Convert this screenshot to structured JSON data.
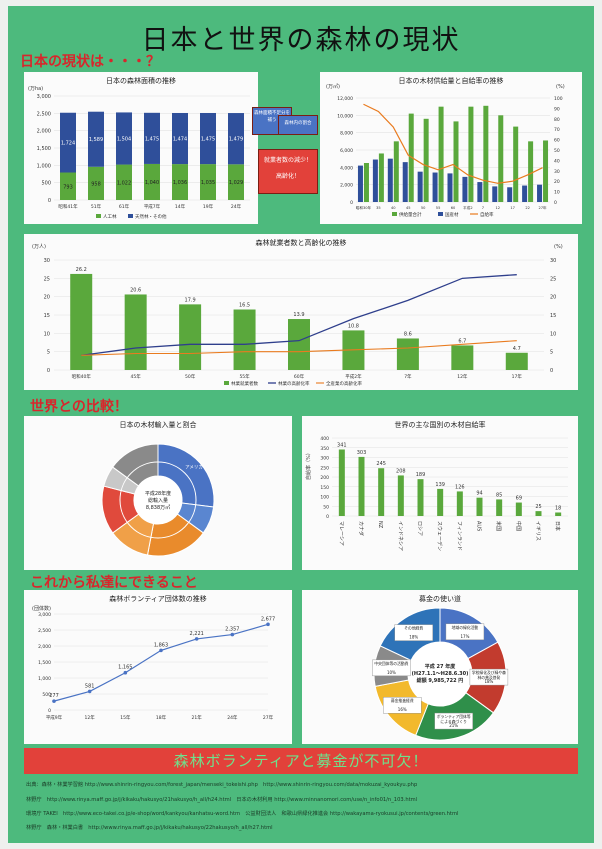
{
  "title": "日本と世界の森林の現状",
  "sections": {
    "japan": "日本の現状は・・・？",
    "world": "世界との比較！",
    "action": "これから私達にできること"
  },
  "arrows": {
    "left": "森林面積不足分を補う",
    "right": "森林内の割合"
  },
  "callout": {
    "line1": "就業者数の減少！",
    "line2": "高齢化！"
  },
  "banner": "森林ボランティアと募金が不可欠！",
  "refs": [
    "出典：森林・林業学習館 http://www.shinrin-ringyou.com/forest_japan/menseki_tokeishi.php　http://www.shinrin-ringyou.com/data/mokuzai_kyoukyu.php",
    "林野庁　http://www.rinya.maff.go.jp/j/kikaku/hakusyo/21hakusyo/h_all/h24.html　日本の木材利用 http://www.minnanomori.com/use/n_info01/n_103.html",
    "環境庁 TAKEI　http://www.eco-takei.co.jp/e-shop/word/kankyou/kanhatsu-word.htm　公益財団法人　和歌山県緑化推進会 http://wakayama-ryokusui.jp/contents/green.html",
    "林野庁　森林・林業白書　http://www.rinya.maff.go.jp/j/kikaku/hakusyo/22hakusyo/h_all/h27.html"
  ],
  "chart_data": [
    {
      "type": "bar",
      "title": "日本の森林面積の推移",
      "unit": "(万ha)",
      "categories": [
        "昭和41年",
        "51年",
        "61年",
        "平成7年",
        "14年",
        "19年",
        "24年"
      ],
      "series": [
        {
          "name": "人工林",
          "values": [
            793,
            958,
            1022,
            1040,
            1036,
            1035,
            1029
          ]
        },
        {
          "name": "天然林・その他",
          "values": [
            1724,
            1589,
            1504,
            1475,
            1474,
            1475,
            1479
          ]
        }
      ],
      "ylim": [
        0,
        3000
      ],
      "yticks": [
        "0",
        "500",
        "1,000",
        "1,500",
        "2,000",
        "2,500",
        "3,000"
      ],
      "value_labels_bottom": [
        "793",
        "958",
        "1,022",
        "1,040",
        "1,036",
        "1,035",
        "1,029"
      ],
      "value_labels_top": [
        "1,724",
        "1,589",
        "1,504",
        "1,475",
        "1,474",
        "1,475",
        "1,479"
      ]
    },
    {
      "type": "bar",
      "title": "日本の木材供給量と自給率の推移",
      "unit": "(万㎥)",
      "unit_right": "(%)",
      "categories": [
        "昭和30年",
        "35",
        "40",
        "45",
        "50",
        "55",
        "60",
        "平成2",
        "7",
        "12",
        "17",
        "22",
        "27年"
      ],
      "series": [
        {
          "name": "供給量合計",
          "values": [
            4500,
            5600,
            7000,
            10200,
            9600,
            11000,
            9300,
            11000,
            11100,
            10000,
            8700,
            7000,
            7100
          ]
        },
        {
          "name": "国産材",
          "values": [
            4200,
            4900,
            5000,
            4600,
            3500,
            3400,
            3300,
            2900,
            2300,
            1800,
            1700,
            1900,
            2000
          ]
        },
        {
          "name": "自給率",
          "values": [
            94,
            87,
            72,
            45,
            36,
            31,
            36,
            26,
            21,
            18,
            20,
            26,
            33
          ]
        }
      ],
      "ylim": [
        0,
        12000
      ],
      "ylim_right": [
        0,
        100
      ],
      "yticks": [
        "0",
        "2,000",
        "4,000",
        "6,000",
        "8,000",
        "10,000",
        "12,000"
      ],
      "yticks_right": [
        "0",
        "10",
        "20",
        "30",
        "40",
        "50",
        "60",
        "70",
        "80",
        "90",
        "100"
      ]
    },
    {
      "type": "bar",
      "title": "森林就業者数と高齢化の推移",
      "unit": "(万人)",
      "unit_right": "(%)",
      "categories": [
        "昭和40年",
        "45年",
        "50年",
        "55年",
        "60年",
        "平成2年",
        "7年",
        "12年",
        "17年"
      ],
      "series": [
        {
          "name": "林業就業者数",
          "values": [
            26.2,
            20.6,
            17.9,
            16.5,
            13.9,
            10.8,
            8.6,
            6.7,
            4.7
          ]
        },
        {
          "name": "林業の高齢化率",
          "values": [
            4,
            6,
            7,
            7,
            8,
            14,
            19,
            25,
            26
          ]
        },
        {
          "name": "全産業の高齢化率",
          "values": [
            4,
            4.5,
            4.5,
            5,
            5,
            5.5,
            6,
            7,
            8
          ]
        }
      ],
      "value_labels": [
        "26.2",
        "20.6",
        "17.9",
        "16.5",
        "13.9",
        "10.8",
        "8.6",
        "6.7",
        "4.7"
      ],
      "ylim": [
        0,
        30
      ],
      "ylim_right": [
        0,
        30
      ],
      "yticks": [
        "0",
        "5",
        "10",
        "15",
        "20",
        "25",
        "30"
      ],
      "yticks_right": [
        "0",
        "5",
        "10",
        "15",
        "20",
        "25",
        "30"
      ]
    },
    {
      "type": "pie",
      "title": "日本の木材輸入量と割合",
      "center": [
        "平成28年度",
        "総輸入量",
        "8,838万㎥"
      ],
      "slices": [
        {
          "label": "アメリカ",
          "value": 27,
          "color": "#4a73c4"
        },
        {
          "label": "",
          "value": 8,
          "color": "#5a86d0"
        },
        {
          "label": "",
          "value": 18,
          "color": "#e98b2c"
        },
        {
          "label": "",
          "value": 12,
          "color": "#f0a048"
        },
        {
          "label": "",
          "value": 14,
          "color": "#e04a3c"
        },
        {
          "label": "",
          "value": 6,
          "color": "#c8c8c8"
        },
        {
          "label": "",
          "value": 15,
          "color": "#8a8a8a"
        }
      ]
    },
    {
      "type": "bar",
      "title": "世界の主な国別の木材自給率",
      "ylabel": "自給率（%）",
      "categories": [
        "マレーシア",
        "カナダ",
        "NZ",
        "インドネシア",
        "ロシア",
        "スウェーデン",
        "フィンランド",
        "AUS",
        "米国",
        "中国",
        "イギリス",
        "日本"
      ],
      "values": [
        341,
        303,
        245,
        208,
        189,
        139,
        126,
        94,
        85,
        69,
        25,
        18
      ],
      "ylim": [
        0,
        400
      ],
      "yticks": [
        "0",
        "50",
        "100",
        "150",
        "200",
        "250",
        "300",
        "350",
        "400"
      ]
    },
    {
      "type": "line",
      "title": "森林ボランティア団体数の推移",
      "unit": "(団体数)",
      "categories": [
        "平成9年",
        "12年",
        "15年",
        "18年",
        "21年",
        "24年",
        "27年"
      ],
      "values": [
        277,
        581,
        1165,
        1863,
        2221,
        2357,
        2677
      ],
      "value_labels": [
        "277",
        "581",
        "1,165",
        "1,863",
        "2,221",
        "2,357",
        "2,677"
      ],
      "ylim": [
        0,
        3000
      ],
      "yticks": [
        "0",
        "500",
        "1,000",
        "1,500",
        "2,000",
        "2,500",
        "3,000"
      ]
    },
    {
      "type": "pie",
      "title": "募金の使い道",
      "center": [
        "平成 27 年度",
        "(H27.1.1～H28.6.30)",
        "総額 9,985,722 円"
      ],
      "slices": [
        {
          "label": "地域の緑化活動",
          "pct": "17%",
          "value": 17,
          "color": "#4a73c4"
        },
        {
          "label": "学校緑化及び緑や森林の普及啓発",
          "pct": "18%",
          "value": 18,
          "color": "#c23b2e"
        },
        {
          "label": "ボランティア団体等による森づくり",
          "pct": "21%",
          "value": 21,
          "color": "#2f8f4a"
        },
        {
          "label": "募金推進経費",
          "pct": "16%",
          "value": 16,
          "color": "#f2b92c"
        },
        {
          "label": "中央団体等の活動費",
          "pct": "10%",
          "value": 10,
          "color": "#8a8a8a"
        },
        {
          "label": "その他経費",
          "pct": "18%",
          "value": 18,
          "color": "#2e73b8"
        }
      ]
    }
  ]
}
